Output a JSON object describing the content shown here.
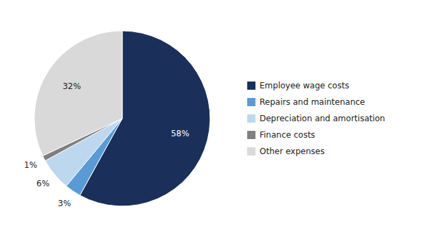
{
  "chart_data": {
    "type": "pie",
    "categories": [
      "Employee wage costs",
      "Repairs and maintenance",
      "Depreciation and amortisation",
      "Finance costs",
      "Other expenses"
    ],
    "values": [
      58,
      3,
      6,
      1,
      32
    ],
    "value_labels": [
      "58%",
      "3%",
      "6%",
      "1%",
      "32%"
    ],
    "colors": [
      "#1a2f5a",
      "#5b9bd5",
      "#bdd7ee",
      "#7f7f7f",
      "#d9d9d9"
    ],
    "data_labels": true,
    "legend": "right"
  }
}
